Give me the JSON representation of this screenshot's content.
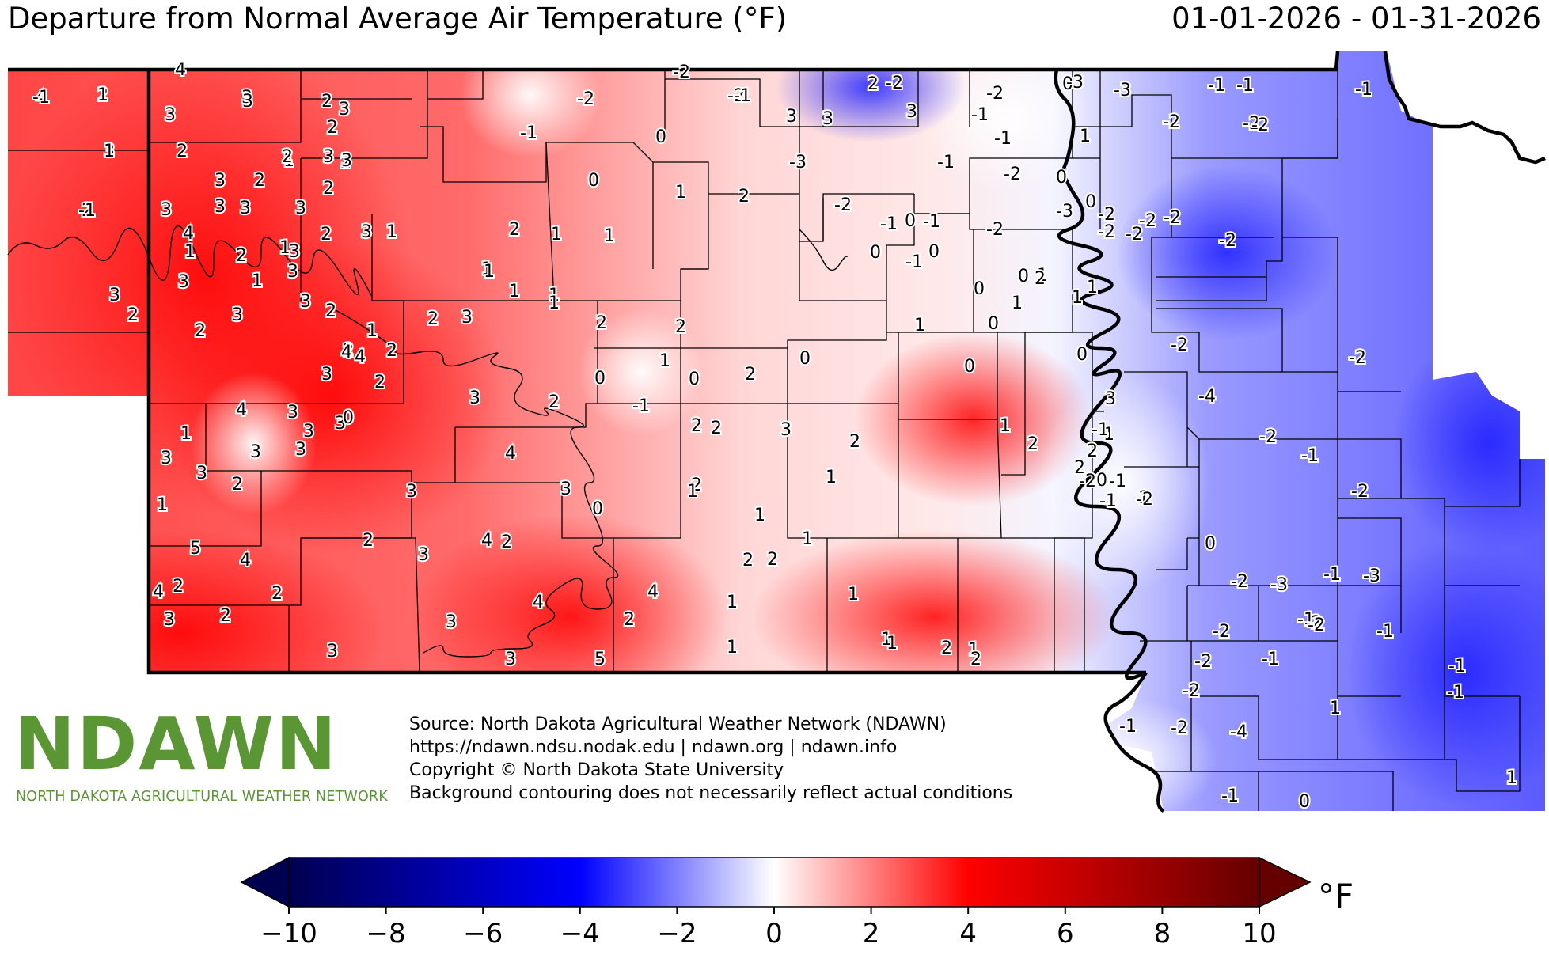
{
  "title": "Departure from Normal Average Air Temperature (°F)",
  "date_range": "01-01-2026 - 01-31-2026",
  "logo": {
    "wordmark": "NDAWN",
    "tagline": "NORTH DAKOTA AGRICULTURAL WEATHER NETWORK"
  },
  "credits": [
    "Source: North Dakota Agricultural Weather Network (NDAWN)",
    "https://ndawn.ndsu.nodak.edu | ndawn.org | ndawn.info",
    "Copyright © North Dakota State University",
    "Background contouring does not necessarily reflect actual conditions"
  ],
  "colorbar": {
    "unit": "°F",
    "ticks": [
      "−10",
      "−8",
      "−6",
      "−4",
      "−2",
      "0",
      "2",
      "4",
      "6",
      "8",
      "10"
    ],
    "colors": [
      "#000050",
      "#0000ff",
      "#ffffff",
      "#ff0000",
      "#640000"
    ]
  },
  "station_values": [
    "4",
    "2",
    "3",
    "2",
    "3",
    "2",
    "4",
    "3",
    "2",
    "3",
    "3",
    "4",
    "3",
    "3",
    "2",
    "1",
    "3",
    "1",
    "3",
    "3",
    "2",
    "1",
    "2",
    "3",
    "2",
    "3",
    "1",
    "2",
    "2",
    "3",
    "2",
    "3",
    "3",
    "2",
    "3",
    "2",
    "3",
    "2",
    "2",
    "3",
    "4",
    "2",
    "3",
    "1",
    "3",
    "4",
    "3",
    "3",
    "3",
    "2",
    "4",
    "3",
    "1",
    "1",
    "3",
    "3",
    "0",
    "3",
    "1",
    "2",
    "3",
    "3",
    "3",
    "2",
    "3",
    "4",
    "2",
    "2",
    "4",
    "2",
    "2",
    "3",
    "5",
    "4",
    "3",
    "2",
    "3",
    "3",
    "4",
    "3",
    "4",
    "5",
    "4",
    "2",
    "-2",
    "-2",
    "-1",
    "0",
    "-2",
    "-1",
    "0",
    "1",
    "2",
    "1",
    "1",
    "1",
    "1",
    "1",
    "2",
    "2",
    "1",
    "1",
    "2",
    "1",
    "0",
    "-1",
    "0",
    "0",
    "2",
    "2",
    "2",
    "2",
    "1",
    "3",
    "1",
    "1",
    "2",
    "0",
    "1",
    "1",
    "2",
    "1",
    "1",
    "1",
    "1",
    "1",
    "1",
    "2",
    "2",
    "2",
    "2",
    "2",
    "3",
    "3",
    "3",
    "-2",
    "-1",
    "-2",
    "-1",
    "-3",
    "-1",
    "0",
    "-2",
    "-1",
    "-2",
    "-1",
    "-2",
    "0",
    "-1",
    "0",
    "0",
    "0",
    "0",
    "1",
    "1",
    "1",
    "1",
    "0",
    "1",
    "2",
    "2",
    "0",
    "3",
    "2",
    "2",
    "0",
    "-1",
    "1",
    "1",
    "0",
    "1",
    "0",
    "0",
    "-2",
    "-3",
    "-3",
    "-3",
    "-2",
    "-2",
    "-2",
    "-1",
    "-2",
    "-2",
    "-1",
    "-2",
    "-2",
    "-2",
    "-2",
    "-4",
    "-2",
    "-1",
    "-2",
    "-1",
    "-2",
    "0",
    "-2",
    "-1",
    "-2",
    "-3",
    "-1",
    "-2",
    "-1",
    "-2",
    "-2",
    "-1",
    "-2",
    "-1",
    "-3",
    "-1",
    "-1",
    "-2",
    "-1",
    "-2",
    "-4",
    "-2",
    "-1",
    "0",
    "1",
    "1",
    "-1",
    "-1",
    "1",
    "1",
    "-1"
  ]
}
